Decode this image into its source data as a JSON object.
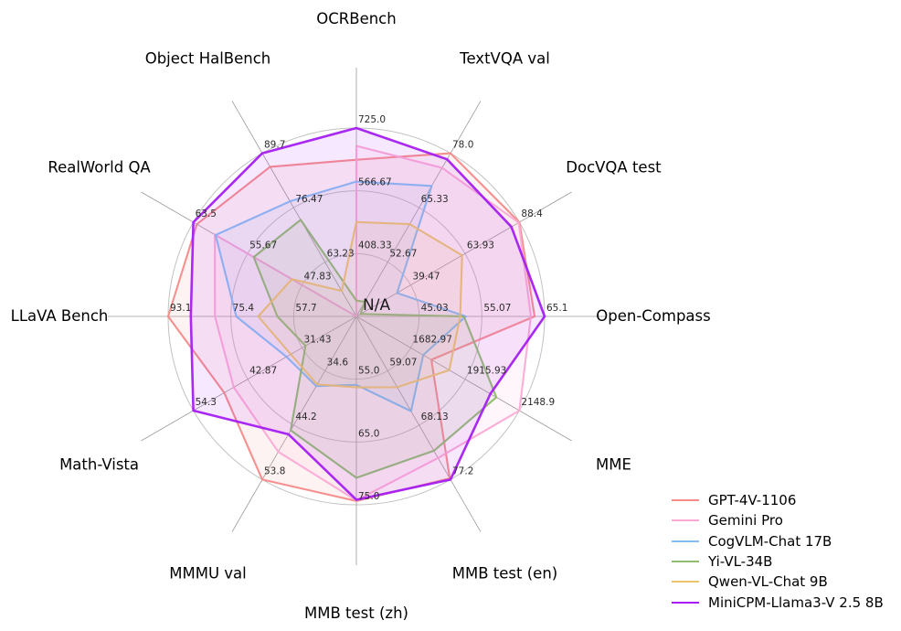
{
  "chart_data": {
    "type": "radar",
    "grid": true,
    "legend_position": "lower right",
    "center_label": "N/A",
    "axes": [
      {
        "label": "OCRBench",
        "ticks": [
          "725.0",
          "566.67",
          "408.33"
        ],
        "range": [
          250,
          725
        ]
      },
      {
        "label": "TextVQA val",
        "ticks": [
          "78.0",
          "65.33",
          "52.67"
        ],
        "range": [
          40,
          78
        ]
      },
      {
        "label": "DocVQA test",
        "ticks": [
          "88.4",
          "63.93",
          "39.47"
        ],
        "range": [
          15,
          88.4
        ]
      },
      {
        "label": "Open-Compass",
        "ticks": [
          "65.1",
          "55.07",
          "45.03"
        ],
        "range": [
          35,
          65.1
        ]
      },
      {
        "label": "MME",
        "ticks": [
          "2148.9",
          "1915.93",
          "1682.97"
        ],
        "range": [
          1450,
          2148.9
        ]
      },
      {
        "label": "MMB test (en)",
        "ticks": [
          "77.2",
          "68.13",
          "59.07"
        ],
        "range": [
          50,
          77.2
        ]
      },
      {
        "label": "MMB test (zh)",
        "ticks": [
          "75.0",
          "65.0",
          "55.0"
        ],
        "range": [
          45,
          75
        ]
      },
      {
        "label": "MMMU val",
        "ticks": [
          "53.8",
          "44.2",
          "34.6"
        ],
        "range": [
          25,
          53.8
        ]
      },
      {
        "label": "Math-Vista",
        "ticks": [
          "54.3",
          "42.87",
          "31.43"
        ],
        "range": [
          20,
          54.3
        ]
      },
      {
        "label": "LLaVA Bench",
        "ticks": [
          "93.1",
          "75.4",
          "57.7"
        ],
        "range": [
          40,
          93.1
        ]
      },
      {
        "label": "RealWorld QA",
        "ticks": [
          "63.5",
          "55.67",
          "47.83"
        ],
        "range": [
          40,
          63.5
        ]
      },
      {
        "label": "Object HalBench",
        "ticks": [
          "89.7",
          "76.47",
          "63.23"
        ],
        "range": [
          50,
          89.7
        ]
      }
    ],
    "series": [
      {
        "name": "GPT-4V-1106",
        "color": "#f58a88",
        "values": [
          645,
          78.0,
          88.4,
          63.5,
          1771.5,
          77.0,
          74.4,
          53.8,
          47.8,
          93.1,
          63.0,
          86.4
        ]
      },
      {
        "name": "Gemini Pro",
        "color": "#fcaad5",
        "values": [
          680,
          74.6,
          88.1,
          62.9,
          2148.9,
          73.6,
          74.3,
          48.9,
          45.8,
          79.9,
          60.4,
          null
        ]
      },
      {
        "name": "CogVLM-Chat 17B",
        "color": "#85bdf0",
        "values": [
          590,
          70.4,
          33.3,
          52.5,
          1736.6,
          65.8,
          55.9,
          37.3,
          34.7,
          73.9,
          60.3,
          78.0
        ]
      },
      {
        "name": "Yi-VL-34B",
        "color": "#8fbc6e",
        "values": [
          290,
          43.4,
          16.9,
          52.2,
          2050.2,
          72.4,
          70.7,
          45.1,
          30.7,
          62.3,
          54.8,
          73.5
        ]
      },
      {
        "name": "Qwen-VL-Chat 9B",
        "color": "#eac56d",
        "values": [
          488,
          61.5,
          62.6,
          51.6,
          1848.3,
          61.8,
          56.3,
          37.0,
          33.8,
          67.7,
          49.3,
          56.2
        ]
      },
      {
        "name": "MiniCPM-Llama3-V 2.5 8B",
        "color": "#a41df2",
        "values": [
          725,
          76.6,
          84.8,
          65.1,
          2024.6,
          77.2,
          74.2,
          45.8,
          54.3,
          86.7,
          63.5,
          89.7
        ]
      }
    ]
  }
}
